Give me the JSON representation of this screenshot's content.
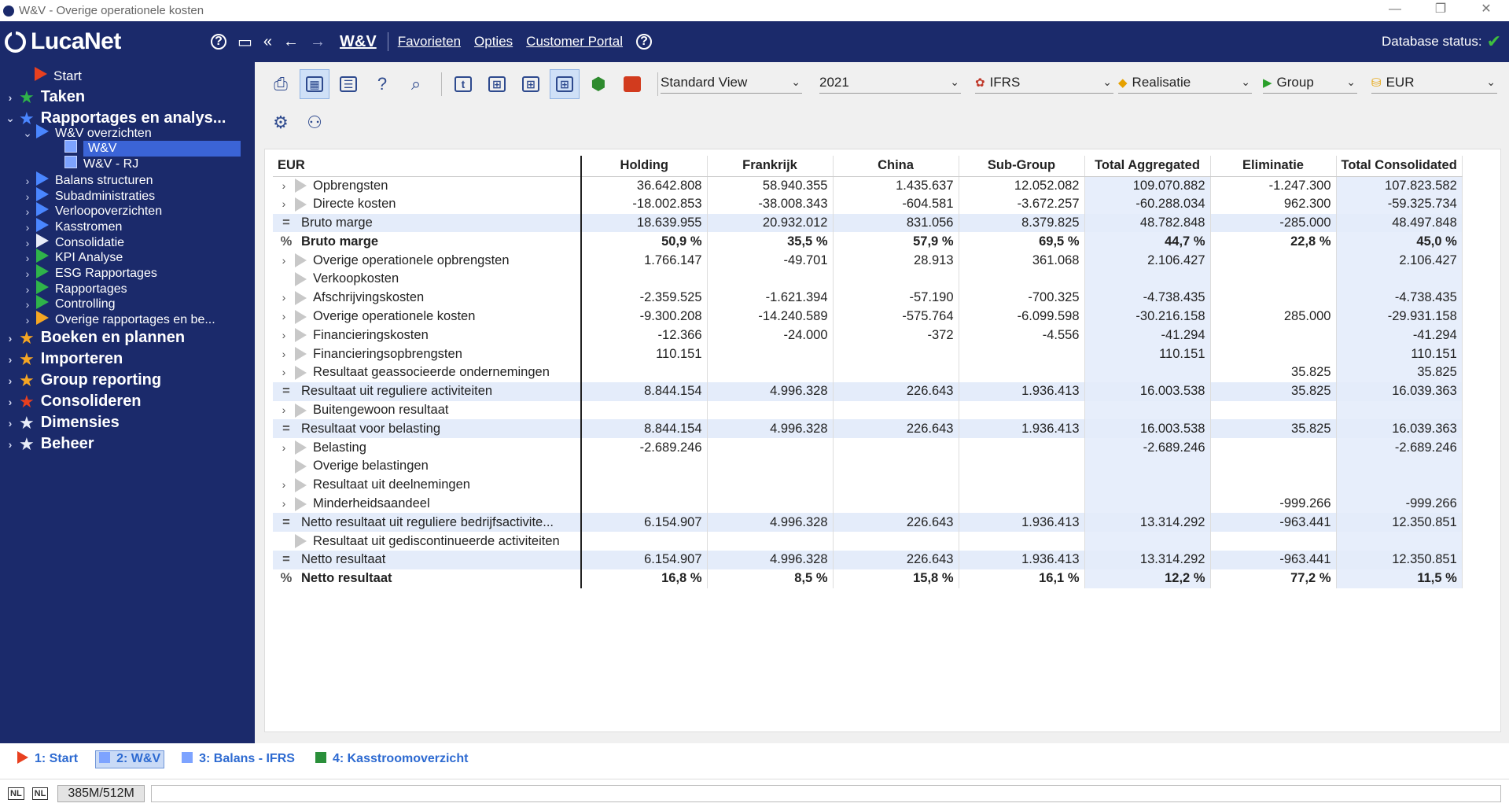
{
  "window": {
    "title": "W&V - Overige operationele kosten"
  },
  "nav": {
    "logo": "LucaNet",
    "current": "W&V",
    "links": [
      "Favorieten",
      "Opties",
      "Customer Portal"
    ],
    "db_status": "Database status:"
  },
  "sidebar": {
    "items": [
      {
        "label": "Start",
        "icon": "triangle-red"
      },
      {
        "label": "Taken",
        "icon": "star-green"
      },
      {
        "label": "Rapportages en analys...",
        "icon": "star-blue"
      },
      {
        "label": "W&V overzichten",
        "icon": "triangle-blue"
      },
      {
        "label": "W&V",
        "icon": "square"
      },
      {
        "label": "W&V - RJ",
        "icon": "square"
      },
      {
        "label": "Balans structuren",
        "icon": "triangle-blue"
      },
      {
        "label": "Subadministraties",
        "icon": "triangle-blue"
      },
      {
        "label": "Verloopoverzichten",
        "icon": "triangle-blue"
      },
      {
        "label": "Kasstromen",
        "icon": "triangle-blue"
      },
      {
        "label": "Consolidatie",
        "icon": "triangle-white"
      },
      {
        "label": "KPI Analyse",
        "icon": "triangle-green"
      },
      {
        "label": "ESG Rapportages",
        "icon": "triangle-green"
      },
      {
        "label": "Rapportages",
        "icon": "triangle-green"
      },
      {
        "label": "Controlling",
        "icon": "triangle-green"
      },
      {
        "label": "Overige rapportages en be...",
        "icon": "triangle-orange"
      },
      {
        "label": "Boeken en plannen",
        "icon": "star-orange"
      },
      {
        "label": "Importeren",
        "icon": "star-orange"
      },
      {
        "label": "Group reporting",
        "icon": "star-orange"
      },
      {
        "label": "Consolideren",
        "icon": "star-red"
      },
      {
        "label": "Dimensies",
        "icon": "star-white"
      },
      {
        "label": "Beheer",
        "icon": "star-white"
      }
    ]
  },
  "filters": {
    "view": "Standard View",
    "year": "2021",
    "gaap": "IFRS",
    "scenario": "Realisatie",
    "entity": "Group",
    "currency": "EUR"
  },
  "grid": {
    "corner": "EUR",
    "columns": [
      "Holding",
      "Frankrijk",
      "China",
      "Sub-Group",
      "Total Aggregated",
      "Eliminatie",
      "Total Consolidated"
    ],
    "rows": [
      {
        "label": "Opbrengsten",
        "type": "expand",
        "values": [
          "36.642.808",
          "58.940.355",
          "1.435.637",
          "12.052.082",
          "109.070.882",
          "-1.247.300",
          "107.823.582"
        ]
      },
      {
        "label": "Directe kosten",
        "type": "expand",
        "values": [
          "-18.002.853",
          "-38.008.343",
          "-604.581",
          "-3.672.257",
          "-60.288.034",
          "962.300",
          "-59.325.734"
        ]
      },
      {
        "label": "Bruto marge",
        "type": "sum",
        "values": [
          "18.639.955",
          "20.932.012",
          "831.056",
          "8.379.825",
          "48.782.848",
          "-285.000",
          "48.497.848"
        ]
      },
      {
        "label": "Bruto marge",
        "type": "pct",
        "values": [
          "50,9 %",
          "35,5 %",
          "57,9 %",
          "69,5 %",
          "44,7 %",
          "22,8 %",
          "45,0 %"
        ]
      },
      {
        "label": "Overige operationele opbrengsten",
        "type": "expand",
        "values": [
          "1.766.147",
          "-49.701",
          "28.913",
          "361.068",
          "2.106.427",
          "",
          "2.106.427"
        ]
      },
      {
        "label": "Verkoopkosten",
        "type": "leaf",
        "values": [
          "",
          "",
          "",
          "",
          "",
          "",
          ""
        ]
      },
      {
        "label": "Afschrijvingskosten",
        "type": "expand",
        "values": [
          "-2.359.525",
          "-1.621.394",
          "-57.190",
          "-700.325",
          "-4.738.435",
          "",
          "-4.738.435"
        ]
      },
      {
        "label": "Overige operationele kosten",
        "type": "expand",
        "values": [
          "-9.300.208",
          "-14.240.589",
          "-575.764",
          "-6.099.598",
          "-30.216.158",
          "285.000",
          "-29.931.158"
        ]
      },
      {
        "label": "Financieringskosten",
        "type": "expand",
        "values": [
          "-12.366",
          "-24.000",
          "-372",
          "-4.556",
          "-41.294",
          "",
          "-41.294"
        ]
      },
      {
        "label": "Financieringsopbrengsten",
        "type": "expand",
        "values": [
          "110.151",
          "",
          "",
          "",
          "110.151",
          "",
          "110.151"
        ]
      },
      {
        "label": "Resultaat geassocieerde ondernemingen",
        "type": "expand",
        "values": [
          "",
          "",
          "",
          "",
          "",
          "35.825",
          "35.825"
        ]
      },
      {
        "label": "Resultaat uit reguliere activiteiten",
        "type": "sum",
        "values": [
          "8.844.154",
          "4.996.328",
          "226.643",
          "1.936.413",
          "16.003.538",
          "35.825",
          "16.039.363"
        ]
      },
      {
        "label": "Buitengewoon resultaat",
        "type": "expand",
        "values": [
          "",
          "",
          "",
          "",
          "",
          "",
          ""
        ]
      },
      {
        "label": "Resultaat voor belasting",
        "type": "sum",
        "values": [
          "8.844.154",
          "4.996.328",
          "226.643",
          "1.936.413",
          "16.003.538",
          "35.825",
          "16.039.363"
        ]
      },
      {
        "label": "Belasting",
        "type": "expand",
        "values": [
          "-2.689.246",
          "",
          "",
          "",
          "-2.689.246",
          "",
          "-2.689.246"
        ]
      },
      {
        "label": "Overige belastingen",
        "type": "leaf",
        "values": [
          "",
          "",
          "",
          "",
          "",
          "",
          ""
        ]
      },
      {
        "label": "Resultaat uit deelnemingen",
        "type": "expand",
        "values": [
          "",
          "",
          "",
          "",
          "",
          "",
          ""
        ]
      },
      {
        "label": "Minderheidsaandeel",
        "type": "expand",
        "values": [
          "",
          "",
          "",
          "",
          "",
          "-999.266",
          "-999.266"
        ]
      },
      {
        "label": "Netto resultaat uit reguliere bedrijfsactivite...",
        "type": "sum",
        "values": [
          "6.154.907",
          "4.996.328",
          "226.643",
          "1.936.413",
          "13.314.292",
          "-963.441",
          "12.350.851"
        ]
      },
      {
        "label": "Resultaat uit gediscontinueerde activiteiten",
        "type": "leaf",
        "values": [
          "",
          "",
          "",
          "",
          "",
          "",
          ""
        ]
      },
      {
        "label": "Netto resultaat",
        "type": "sum",
        "values": [
          "6.154.907",
          "4.996.328",
          "226.643",
          "1.936.413",
          "13.314.292",
          "-963.441",
          "12.350.851"
        ]
      },
      {
        "label": "Netto resultaat",
        "type": "pct",
        "values": [
          "16,8 %",
          "8,5 %",
          "15,8 %",
          "16,1 %",
          "12,2 %",
          "77,2 %",
          "11,5 %"
        ]
      }
    ]
  },
  "tasks": [
    {
      "label": "1: Start",
      "icon": "triangle-red"
    },
    {
      "label": "2: W&V",
      "icon": "square-blue"
    },
    {
      "label": "3: Balans - IFRS",
      "icon": "square-blue"
    },
    {
      "label": "4: Kasstroomoverzicht",
      "icon": "square-green"
    }
  ],
  "status": {
    "lang1": "NL",
    "lang2": "NL",
    "memory": "385M/512M"
  },
  "colors": {
    "navy": "#1b2a6b",
    "accent": "#3b64d6",
    "highlight_row": "#e4ecfa"
  }
}
